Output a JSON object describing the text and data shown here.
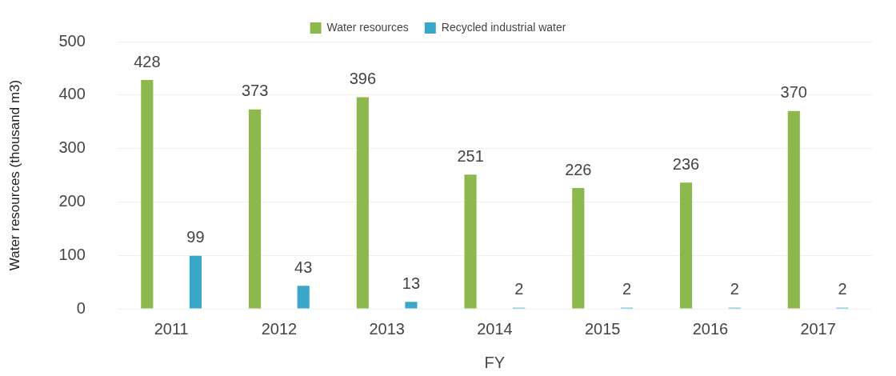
{
  "chart_data": {
    "type": "bar",
    "xlabel": "FY",
    "ylabel": "Water resources (thousand m3)",
    "categories": [
      "2011",
      "2012",
      "2013",
      "2014",
      "2015",
      "2016",
      "2017"
    ],
    "series": [
      {
        "name": "Water resources",
        "color": "#8cb84e",
        "values": [
          428,
          373,
          396,
          251,
          226,
          236,
          370
        ]
      },
      {
        "name": "Recycled industrial water",
        "color": "#3aa6c8",
        "values": [
          99,
          43,
          13,
          2,
          2,
          2,
          2
        ]
      }
    ],
    "ylim": [
      0,
      500
    ],
    "yticks": [
      0,
      100,
      200,
      300,
      400,
      500
    ],
    "grid": "y",
    "legend": "top",
    "data_labels": true
  }
}
